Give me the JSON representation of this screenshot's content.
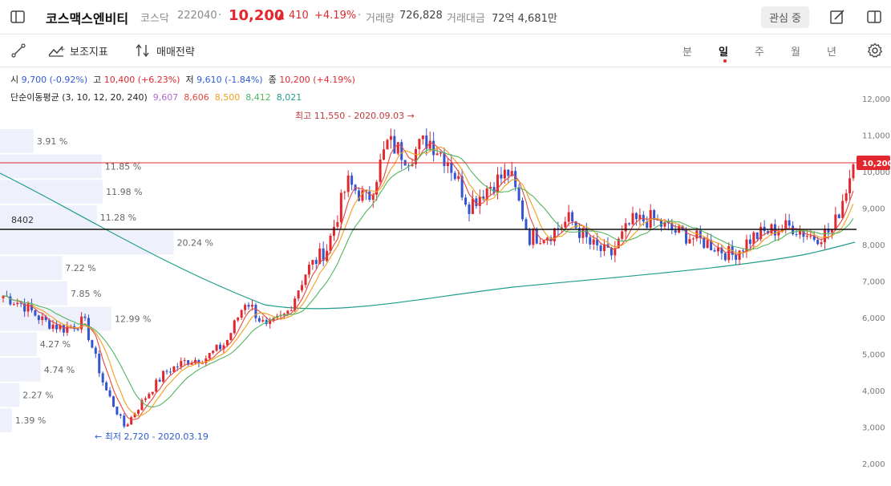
{
  "header": {
    "stock_name": "코스맥스엔비티",
    "market": "코스닥",
    "code": "222040",
    "separator": "·",
    "price": "10,200",
    "change_arrow": "▲",
    "change": "410",
    "change_pct": "+4.19%",
    "volume_label": "거래량",
    "volume": "726,828",
    "amount_label": "거래대금",
    "amount": "72억 4,681만",
    "watch_button": "관심 중"
  },
  "toolbar": {
    "indicators_label": "보조지표",
    "strategy_label": "매매전략",
    "periods": [
      "분",
      "일",
      "주",
      "월",
      "년"
    ],
    "active_period": "일"
  },
  "ohlc": {
    "open_label": "시",
    "open": "9,700 (-0.92%)",
    "high_label": "고",
    "high": "10,400 (+6.23%)",
    "low_label": "저",
    "low": "9,610 (-1.84%)",
    "close_label": "종",
    "close": "10,200 (+4.19%)"
  },
  "ma": {
    "label": "단순이동평균 (3, 10, 12, 20, 240)",
    "values": [
      {
        "value": "9,607",
        "color": "#b469d8"
      },
      {
        "value": "8,606",
        "color": "#e5483e"
      },
      {
        "value": "8,500",
        "color": "#f0a01c"
      },
      {
        "value": "8,412",
        "color": "#52b55f"
      },
      {
        "value": "8,021",
        "color": "#1f9c8c"
      }
    ]
  },
  "annotations": {
    "high": "최고 11,550 - 2020.09.03",
    "low": "최저 2,720 - 2020.03.19",
    "hline_value": "8402",
    "current_price": "10,200"
  },
  "chart_data": {
    "type": "candlestick",
    "y_ticks": [
      "12,000",
      "11,000",
      "10,000",
      "9,000",
      "8,000",
      "7,000",
      "6,000",
      "5,000",
      "4,000",
      "3,000",
      "2,000"
    ],
    "y_range": [
      2000,
      12000
    ],
    "current_price": 10200,
    "horizontal_line": 8402,
    "high": {
      "value": 11550,
      "date": "2020.09.03"
    },
    "low": {
      "value": 2720,
      "date": "2020.03.19"
    },
    "volume_profile": [
      {
        "label": "3.91 %",
        "pct": 3.91
      },
      {
        "label": "11.85 %",
        "pct": 11.85
      },
      {
        "label": "11.98 %",
        "pct": 11.98
      },
      {
        "label": "11.28 %",
        "pct": 11.28
      },
      {
        "label": "20.24 %",
        "pct": 20.24
      },
      {
        "label": "7.22 %",
        "pct": 7.22
      },
      {
        "label": "7.85 %",
        "pct": 7.85
      },
      {
        "label": "12.99 %",
        "pct": 12.99
      },
      {
        "label": "4.27 %",
        "pct": 4.27
      },
      {
        "label": "4.74 %",
        "pct": 4.74
      },
      {
        "label": "2.27 %",
        "pct": 2.27
      },
      {
        "label": "1.39 %",
        "pct": 1.39
      }
    ],
    "close_trend": [
      6600,
      6350,
      5900,
      5700,
      5900,
      4100,
      3000,
      3800,
      4500,
      4800,
      4900,
      5300,
      6500,
      5700,
      6100,
      7300,
      7900,
      9700,
      9200,
      10800,
      10400,
      10900,
      10300,
      9100,
      9600,
      10000,
      8200,
      8300,
      8700,
      8000,
      7700,
      8600,
      8700,
      8400,
      8200,
      8000,
      7700,
      8200,
      8400,
      8500,
      8200,
      8400,
      10200
    ],
    "series": [
      {
        "name": "MA3",
        "color": "#b469d8"
      },
      {
        "name": "MA10",
        "color": "#e5483e"
      },
      {
        "name": "MA12",
        "color": "#f0a01c"
      },
      {
        "name": "MA20",
        "color": "#52b55f"
      },
      {
        "name": "MA240",
        "color": "#1f9c8c"
      }
    ],
    "colors": {
      "up": "#e2282f",
      "down": "#3355d1"
    }
  }
}
